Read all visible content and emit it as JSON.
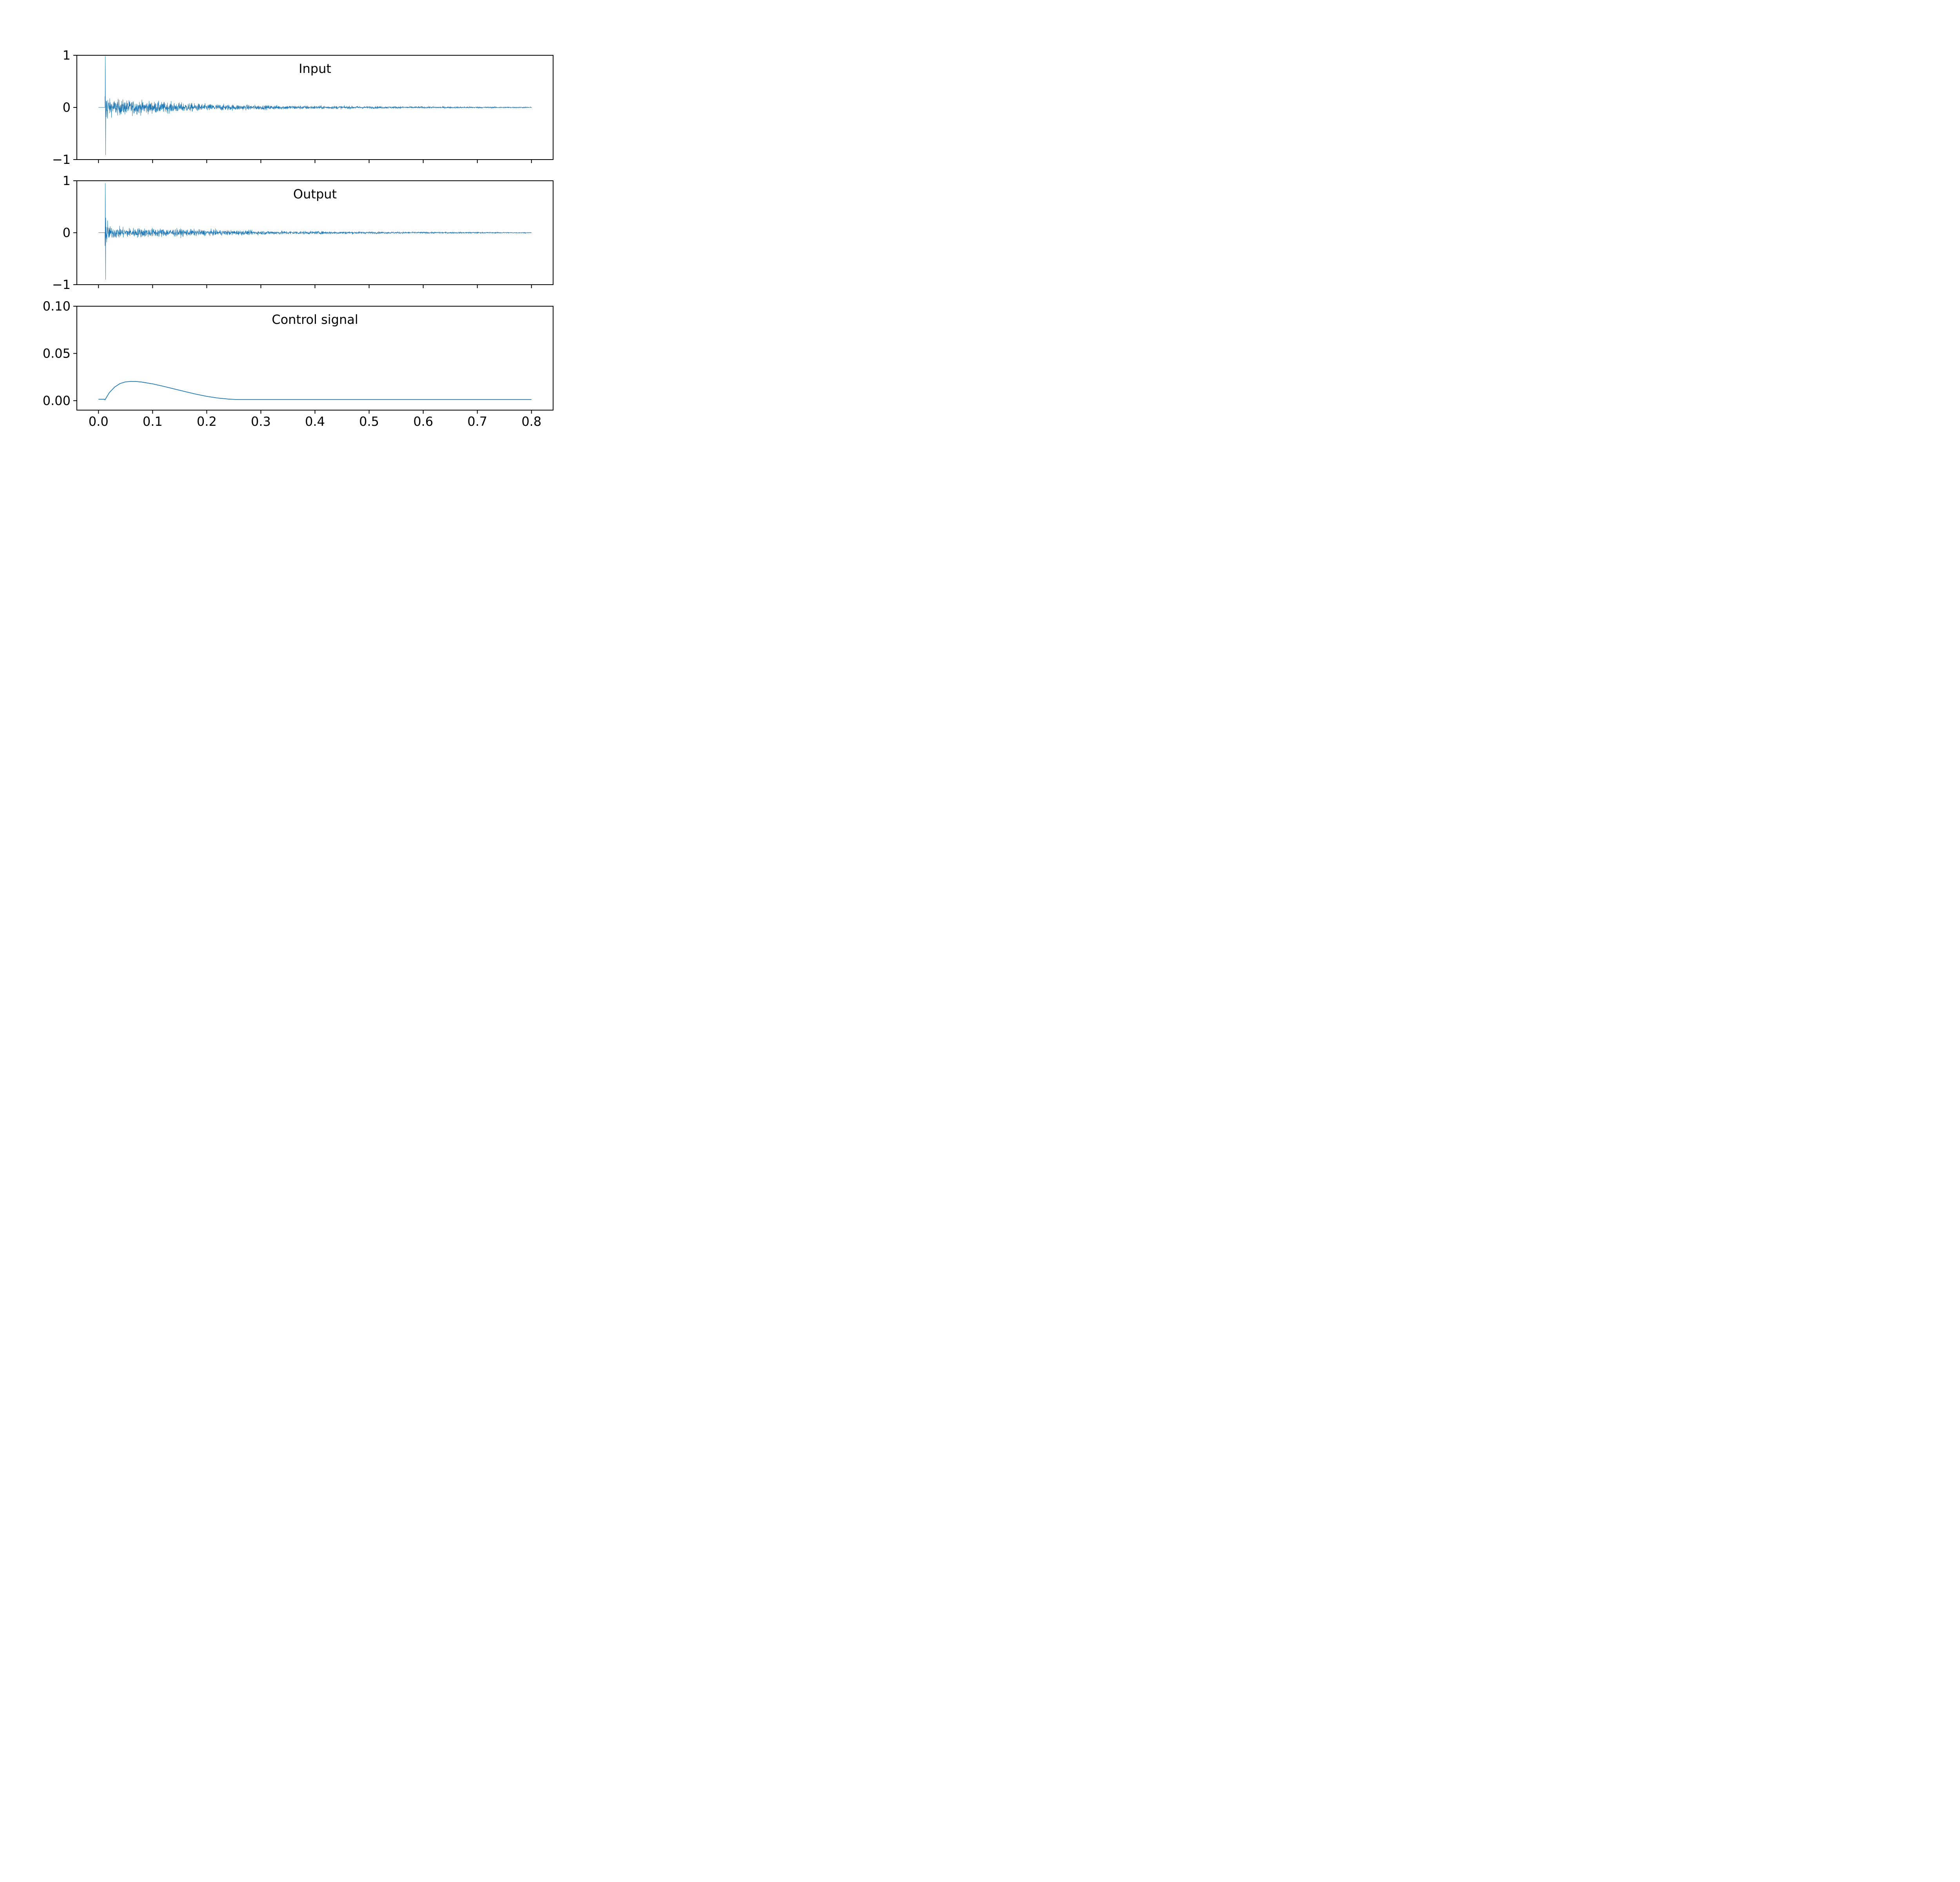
{
  "chart_data": [
    {
      "type": "line",
      "title": "Input",
      "xlabel": "",
      "ylabel": "",
      "xlim": [
        -0.04,
        0.84
      ],
      "ylim": [
        -1,
        1
      ],
      "grid": false,
      "x_ticks": [
        0.0,
        0.1,
        0.2,
        0.3,
        0.4,
        0.5,
        0.6,
        0.7,
        0.8
      ],
      "x_tick_labels_shown": false,
      "y_ticks": [
        1,
        0,
        -1
      ],
      "y_tick_labels": [
        "1",
        "0",
        "−1"
      ],
      "color": "#1f77b4",
      "series": [
        {
          "signal": "decaying noise burst",
          "x_range": [
            0.0,
            0.8
          ],
          "onset": 0.012,
          "peak_max": 0.98,
          "peak_min": -0.91,
          "envelope": {
            "x": [
              0.012,
              0.02,
              0.05,
              0.1,
              0.2,
              0.3,
              0.4,
              0.5,
              0.6,
              0.7,
              0.8
            ],
            "amp": [
              0.9,
              0.33,
              0.3,
              0.24,
              0.14,
              0.09,
              0.07,
              0.05,
              0.04,
              0.035,
              0.025
            ]
          }
        }
      ]
    },
    {
      "type": "line",
      "title": "Output",
      "xlabel": "",
      "ylabel": "",
      "xlim": [
        -0.04,
        0.84
      ],
      "ylim": [
        -1,
        1
      ],
      "grid": false,
      "x_ticks": [
        0.0,
        0.1,
        0.2,
        0.3,
        0.4,
        0.5,
        0.6,
        0.7,
        0.8
      ],
      "x_tick_labels_shown": false,
      "y_ticks": [
        1,
        0,
        -1
      ],
      "y_tick_labels": [
        "1",
        "0",
        "−1"
      ],
      "color": "#1f77b4",
      "series": [
        {
          "signal": "decaying noise burst",
          "x_range": [
            0.0,
            0.8
          ],
          "onset": 0.012,
          "peak_max": 0.95,
          "peak_min": -0.9,
          "envelope": {
            "x": [
              0.012,
              0.02,
              0.05,
              0.1,
              0.2,
              0.3,
              0.4,
              0.5,
              0.6,
              0.7,
              0.8
            ],
            "amp": [
              0.88,
              0.25,
              0.2,
              0.18,
              0.12,
              0.08,
              0.06,
              0.045,
              0.035,
              0.03,
              0.02
            ]
          }
        }
      ]
    },
    {
      "type": "line",
      "title": "Control signal",
      "xlabel": "",
      "ylabel": "",
      "xlim": [
        -0.04,
        0.84
      ],
      "ylim": [
        -0.01,
        0.1
      ],
      "grid": false,
      "x_ticks": [
        0.0,
        0.1,
        0.2,
        0.3,
        0.4,
        0.5,
        0.6,
        0.7,
        0.8
      ],
      "x_tick_labels": [
        "0.0",
        "0.1",
        "0.2",
        "0.3",
        "0.4",
        "0.5",
        "0.6",
        "0.7",
        "0.8"
      ],
      "y_ticks": [
        0.1,
        0.05,
        0.0
      ],
      "y_tick_labels": [
        "0.10",
        "0.05",
        "0.00"
      ],
      "color": "#1f77b4",
      "series": [
        {
          "x": [
            0.0,
            0.011,
            0.012,
            0.013,
            0.02,
            0.03,
            0.04,
            0.05,
            0.06,
            0.07,
            0.08,
            0.1,
            0.12,
            0.14,
            0.16,
            0.18,
            0.2,
            0.22,
            0.24,
            0.255,
            0.3,
            0.4,
            0.5,
            0.6,
            0.7,
            0.8
          ],
          "y": [
            0.0015,
            0.0015,
            0.0008,
            0.0018,
            0.0085,
            0.0145,
            0.0182,
            0.0199,
            0.0204,
            0.0203,
            0.0197,
            0.0178,
            0.0152,
            0.0124,
            0.0096,
            0.0069,
            0.0046,
            0.0028,
            0.0017,
            0.0012,
            0.0012,
            0.0012,
            0.0012,
            0.0012,
            0.0012,
            0.0012
          ]
        }
      ]
    }
  ]
}
